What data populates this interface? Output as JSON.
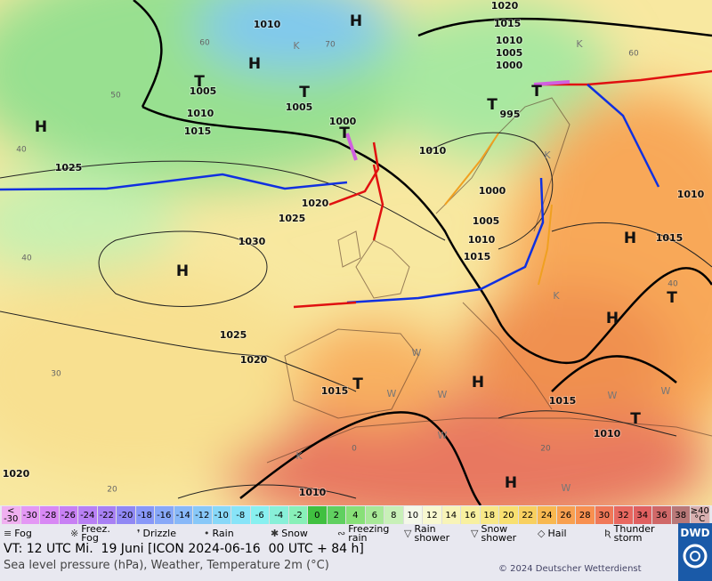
{
  "map": {
    "pressure_labels": [
      "1010",
      "1020",
      "1015",
      "1010",
      "1005",
      "1000",
      "1005",
      "1010",
      "1005",
      "1015",
      "1000",
      "995",
      "1010",
      "1025",
      "1020",
      "1025",
      "1000",
      "1005",
      "1010",
      "1015",
      "1030",
      "1015",
      "1010",
      "1025",
      "1020",
      "1015",
      "1015",
      "1010",
      "1020",
      "1010"
    ],
    "centers": [
      "H",
      "H",
      "T",
      "T",
      "T",
      "H",
      "H",
      "T",
      "T",
      "H",
      "T",
      "H",
      "T",
      "H",
      "T",
      "H"
    ],
    "isotherm_labels": [
      "60",
      "70",
      "50",
      "40",
      "40",
      "30",
      "20",
      "0",
      "60",
      "40",
      "20"
    ],
    "letters": [
      "K",
      "K",
      "K",
      "K",
      "K",
      "W",
      "W",
      "W",
      "W",
      "W",
      "W",
      "W"
    ]
  },
  "legend": {
    "temperature_scale": [
      {
        "label": "<\n-30",
        "color": "#f0b0f0"
      },
      {
        "label": "-30",
        "color": "#e498f4"
      },
      {
        "label": "-28",
        "color": "#d888f4"
      },
      {
        "label": "-26",
        "color": "#c880f4"
      },
      {
        "label": "-24",
        "color": "#b880f4"
      },
      {
        "label": "-22",
        "color": "#a880f4"
      },
      {
        "label": "-20",
        "color": "#9088f4"
      },
      {
        "label": "-18",
        "color": "#8898f8"
      },
      {
        "label": "-16",
        "color": "#88a8f8"
      },
      {
        "label": "-14",
        "color": "#88b8f8"
      },
      {
        "label": "-12",
        "color": "#88c8f8"
      },
      {
        "label": "-10",
        "color": "#88d8f8"
      },
      {
        "label": "-8",
        "color": "#88e4f8"
      },
      {
        "label": "-6",
        "color": "#88f0f0"
      },
      {
        "label": "-4",
        "color": "#88f0d8"
      },
      {
        "label": "-2",
        "color": "#88f0b8"
      },
      {
        "label": "0",
        "color": "#40c040"
      },
      {
        "label": "2",
        "color": "#60d060"
      },
      {
        "label": "4",
        "color": "#88e078"
      },
      {
        "label": "6",
        "color": "#a8e898"
      },
      {
        "label": "8",
        "color": "#c8f0b8"
      },
      {
        "label": "10",
        "color": "#f4f8e8"
      },
      {
        "label": "12",
        "color": "#f8f8d0"
      },
      {
        "label": "14",
        "color": "#f8f4b8"
      },
      {
        "label": "16",
        "color": "#f8f0a0"
      },
      {
        "label": "18",
        "color": "#f8e888"
      },
      {
        "label": "20",
        "color": "#f8e070"
      },
      {
        "label": "22",
        "color": "#f8d060"
      },
      {
        "label": "24",
        "color": "#f8b850"
      },
      {
        "label": "26",
        "color": "#f8a050"
      },
      {
        "label": "28",
        "color": "#f89050"
      },
      {
        "label": "30",
        "color": "#f07858"
      },
      {
        "label": "32",
        "color": "#e86860"
      },
      {
        "label": "34",
        "color": "#e06060"
      },
      {
        "label": "36",
        "color": "#d06868"
      },
      {
        "label": "38",
        "color": "#b87878"
      },
      {
        "label": "≥40\n°C",
        "color": "#d8b0b0"
      }
    ],
    "weather": [
      {
        "icon": "≡",
        "label": "Fog"
      },
      {
        "icon": "※",
        "label": "Freez.\nFog"
      },
      {
        "icon": "❜",
        "label": "Drizzle"
      },
      {
        "icon": "•",
        "label": "Rain"
      },
      {
        "icon": "✱",
        "label": "Snow"
      },
      {
        "icon": "∾",
        "label": "Freezing\nrain"
      },
      {
        "icon": "▽",
        "label": "Rain\nshower"
      },
      {
        "icon": "▽",
        "label": "Snow\nshower"
      },
      {
        "icon": "◇",
        "label": "Hail"
      },
      {
        "icon": "Ʀ",
        "label": "Thunder\nstorm"
      }
    ]
  },
  "footer": {
    "valid_time": "VT: 12 UTC Mi.  19 Juni [ICON 2024-06-16  00 UTC + 84 h]",
    "description": "Sea level pressure (hPa), Weather, Temperature 2m (°C)",
    "copyright": "© 2024 Deutscher Wetterdienst",
    "logo": "DWD"
  }
}
